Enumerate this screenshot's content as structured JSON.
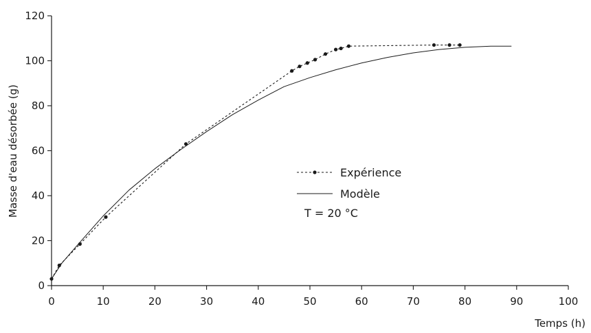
{
  "chart_data": {
    "type": "line",
    "xlabel": "Temps (h)",
    "ylabel": "Masse d'eau désorbée (g)",
    "xlim": [
      0,
      100
    ],
    "ylim": [
      0,
      120
    ],
    "x_ticks": [
      "0",
      "10",
      "20",
      "30",
      "40",
      "50",
      "60",
      "70",
      "80",
      "90",
      "100"
    ],
    "y_ticks": [
      "0",
      "20",
      "40",
      "60",
      "80",
      "100",
      "120"
    ],
    "grid": false,
    "legend_position": "center",
    "annotation": "T = 20 °C",
    "series": [
      {
        "name": "Expérience",
        "style": "dotted-with-markers",
        "color": "#1a1a1a",
        "x": [
          0,
          1.5,
          5.5,
          10.5,
          26,
          46.5,
          48,
          49.5,
          51,
          53,
          55,
          56,
          57.5,
          74,
          77,
          79
        ],
        "y": [
          3,
          9,
          18.5,
          30.5,
          63,
          95.5,
          97.5,
          99,
          100.5,
          103,
          105,
          105.5,
          106.5,
          107,
          107,
          107
        ]
      },
      {
        "name": "Modèle",
        "style": "solid",
        "color": "#1a1a1a",
        "x": [
          0,
          2,
          5,
          10,
          15,
          20,
          25,
          30,
          35,
          40,
          45,
          50,
          55,
          60,
          65,
          70,
          75,
          80,
          85,
          89
        ],
        "y": [
          3,
          10,
          18,
          31,
          42.5,
          52,
          60.5,
          68.5,
          76,
          82.5,
          88.5,
          92.5,
          96,
          99,
          101.5,
          103.5,
          105,
          106,
          106.5,
          106.5
        ]
      }
    ]
  }
}
